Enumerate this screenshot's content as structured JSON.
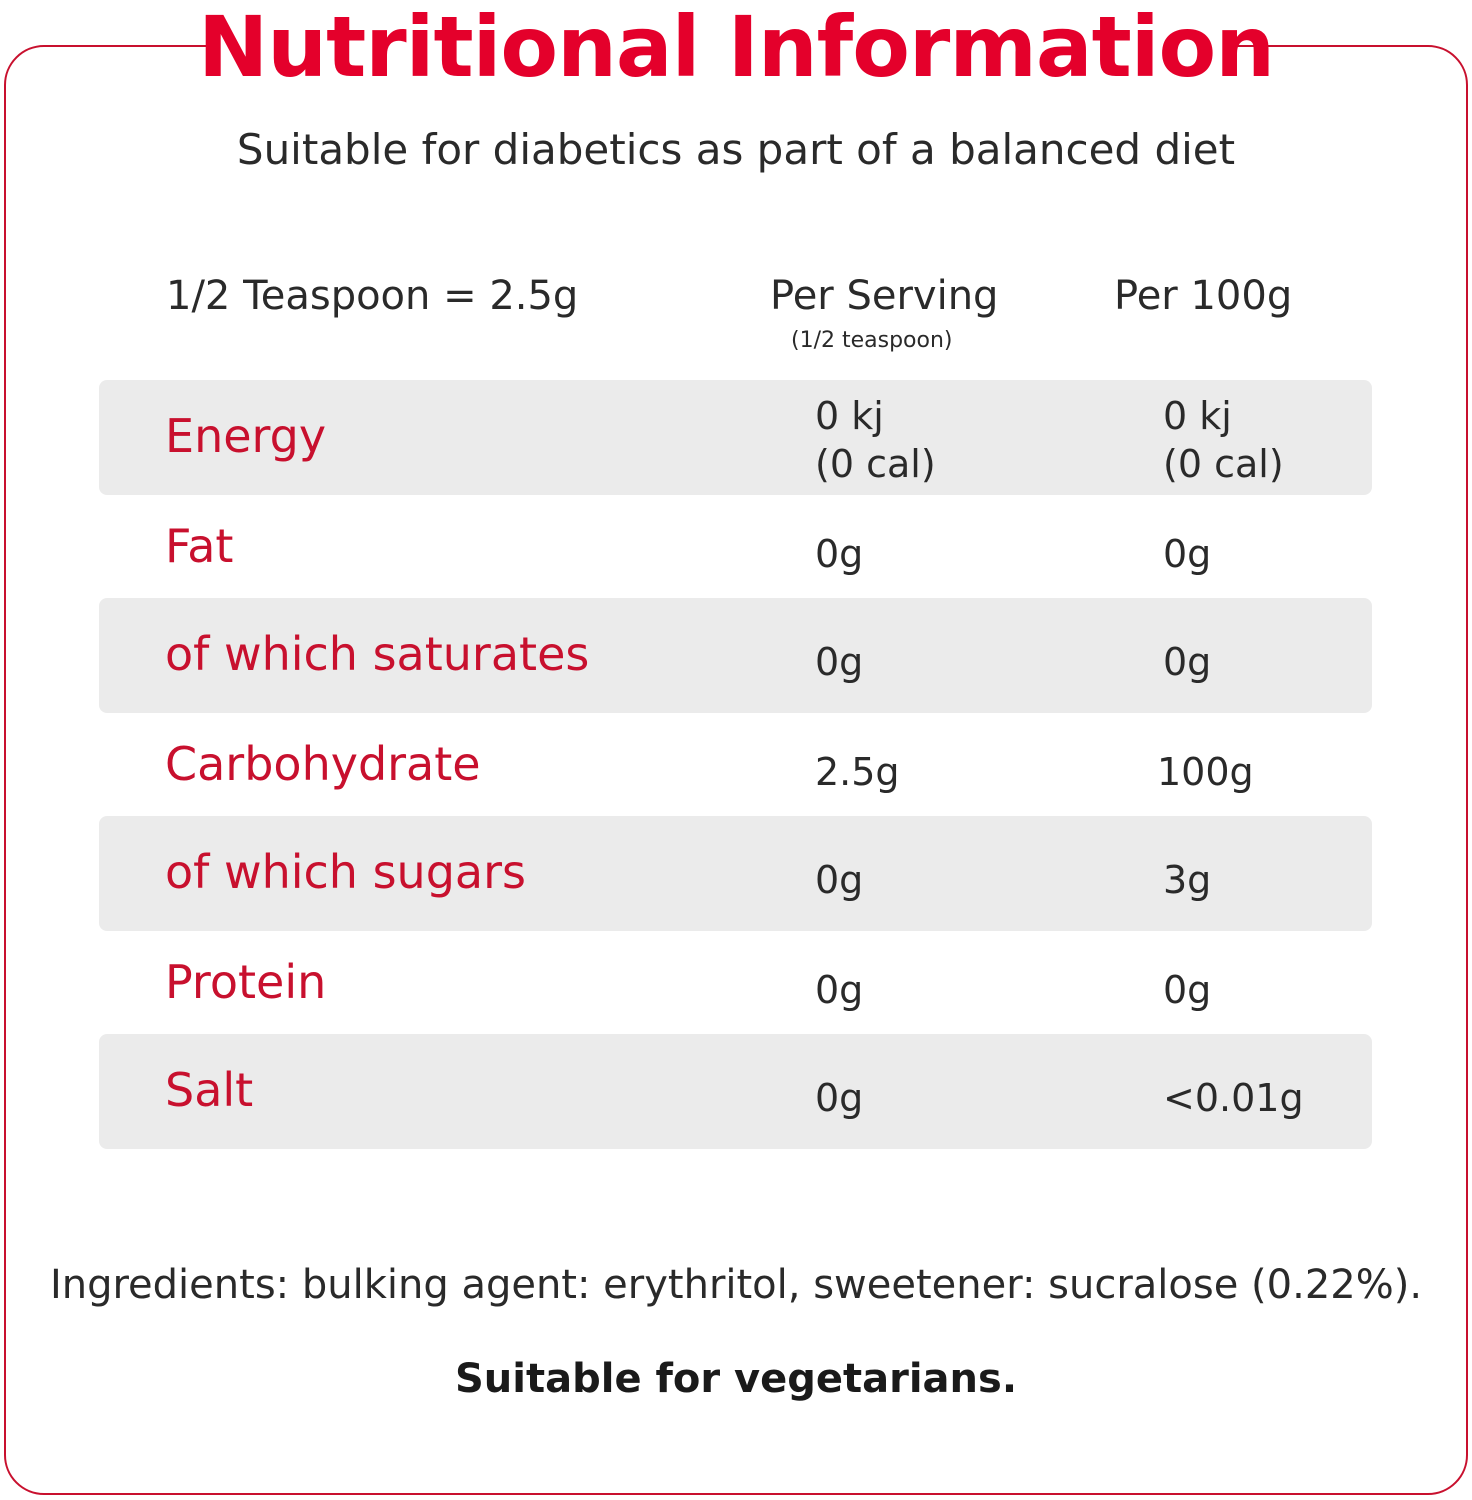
{
  "title": "Nutritional Information",
  "subtitle": "Suitable for diabetics as part of a balanced diet",
  "header": {
    "serving_size": "1/2 Teaspoon = 2.5g",
    "col_serving": "Per Serving",
    "col_serving_note": "(1/2 teaspoon)",
    "col_100g": "Per 100g"
  },
  "rows": [
    {
      "name": "Energy",
      "per_serving": "0 kj",
      "per_serving_2": "(0 cal)",
      "per_100g": "0 kj",
      "per_100g_2": "(0 cal)"
    },
    {
      "name": "Fat",
      "per_serving": "0g",
      "per_100g": "0g"
    },
    {
      "name": "of which saturates",
      "per_serving": "0g",
      "per_100g": "0g"
    },
    {
      "name": "Carbohydrate",
      "per_serving": "2.5g",
      "per_100g": "100g"
    },
    {
      "name": "of which sugars",
      "per_serving": "0g",
      "per_100g": "3g"
    },
    {
      "name": "Protein",
      "per_serving": "0g",
      "per_100g": "0g"
    },
    {
      "name": "Salt",
      "per_serving": "0g",
      "per_100g": "<0.01g"
    }
  ],
  "ingredients": "Ingredients: bulking agent: erythritol, sweetener: sucralose (0.22%).",
  "vegetarian": "Suitable for vegetarians.",
  "colors": {
    "accent": "#e4002b",
    "row_shade": "#ebebeb",
    "text": "#2a2a2a"
  }
}
